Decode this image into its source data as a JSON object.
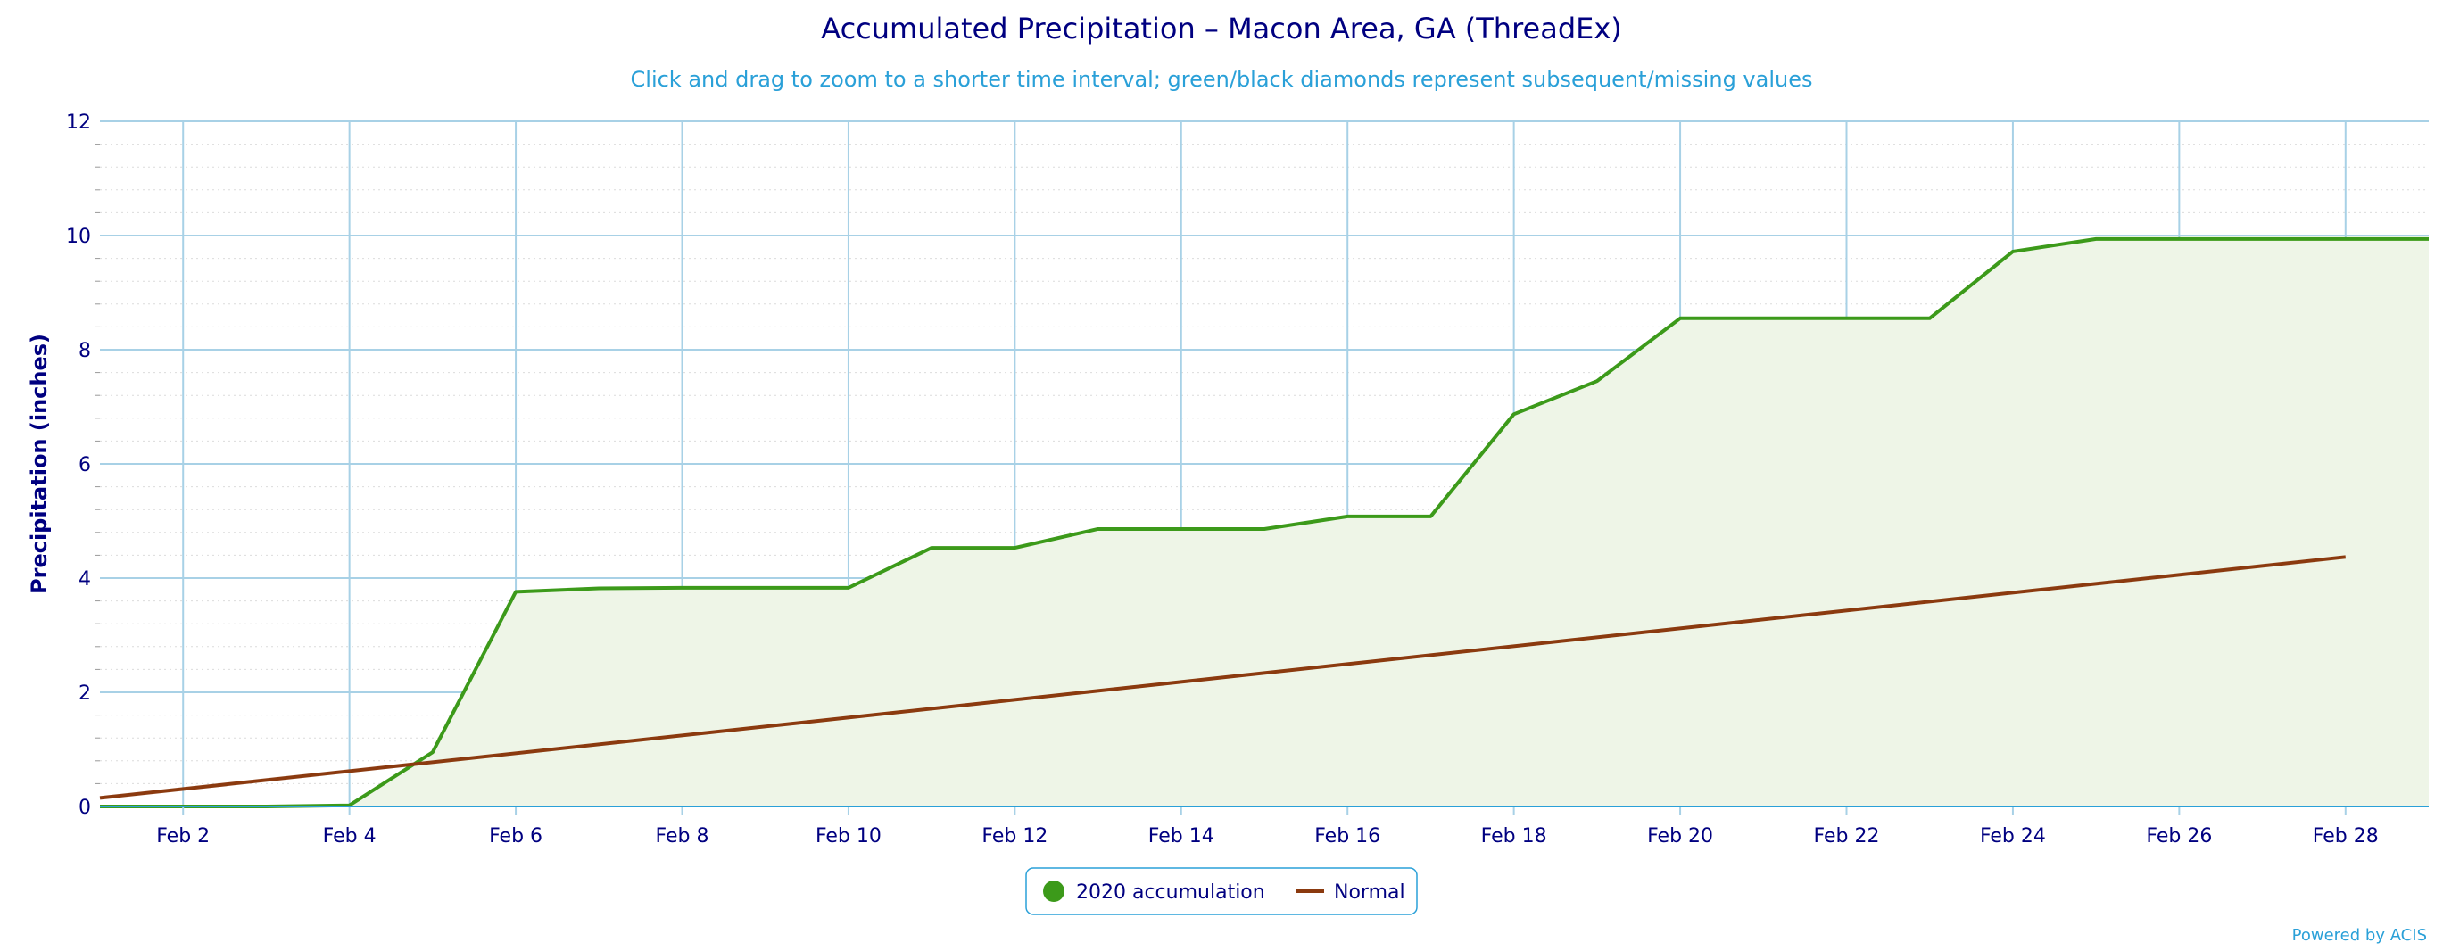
{
  "chart_data": {
    "type": "line",
    "title": "Accumulated Precipitation – Macon Area, GA (ThreadEx)",
    "subtitle": "Click and drag to zoom to a shorter time interval; green/black diamonds represent subsequent/missing values",
    "ylabel": "Precipitation (inches)",
    "xlabel": "",
    "ylim": [
      0,
      12
    ],
    "yticks": [
      0,
      2,
      4,
      6,
      8,
      10,
      12
    ],
    "xlim": [
      "Feb 1",
      "Feb 29"
    ],
    "xticks": [
      "Feb 2",
      "Feb 4",
      "Feb 6",
      "Feb 8",
      "Feb 10",
      "Feb 12",
      "Feb 14",
      "Feb 16",
      "Feb 18",
      "Feb 20",
      "Feb 22",
      "Feb 24",
      "Feb 26",
      "Feb 28"
    ],
    "grid": true,
    "legend_position": "bottom-center",
    "series": [
      {
        "name": "2020 accumulation",
        "color": "#3c9a1a",
        "fill": "#eef5e7",
        "style": "area",
        "x": [
          "Feb 1",
          "Feb 2",
          "Feb 3",
          "Feb 4",
          "Feb 5",
          "Feb 6",
          "Feb 7",
          "Feb 8",
          "Feb 9",
          "Feb 10",
          "Feb 11",
          "Feb 12",
          "Feb 13",
          "Feb 14",
          "Feb 15",
          "Feb 16",
          "Feb 17",
          "Feb 18",
          "Feb 19",
          "Feb 20",
          "Feb 21",
          "Feb 22",
          "Feb 23",
          "Feb 24",
          "Feb 25",
          "Feb 26",
          "Feb 27",
          "Feb 28",
          "Feb 29"
        ],
        "values": [
          0.0,
          0.0,
          0.0,
          0.02,
          0.95,
          3.76,
          3.82,
          3.83,
          3.83,
          3.83,
          4.53,
          4.53,
          4.86,
          4.86,
          4.86,
          5.08,
          5.08,
          6.87,
          7.45,
          8.55,
          8.55,
          8.55,
          8.55,
          9.72,
          9.94,
          9.94,
          9.94,
          9.94,
          9.94
        ]
      },
      {
        "name": "Normal",
        "color": "#8b3a0f",
        "style": "line",
        "x": [
          "Feb 1",
          "Feb 28"
        ],
        "values": [
          0.15,
          4.37
        ]
      }
    ]
  },
  "legend": {
    "items": [
      "2020 accumulation",
      "Normal"
    ]
  },
  "credit": "Powered by ACIS",
  "colors": {
    "grid": "#a8d1e6",
    "axis": "#2aa0d8",
    "text": "#000080"
  }
}
